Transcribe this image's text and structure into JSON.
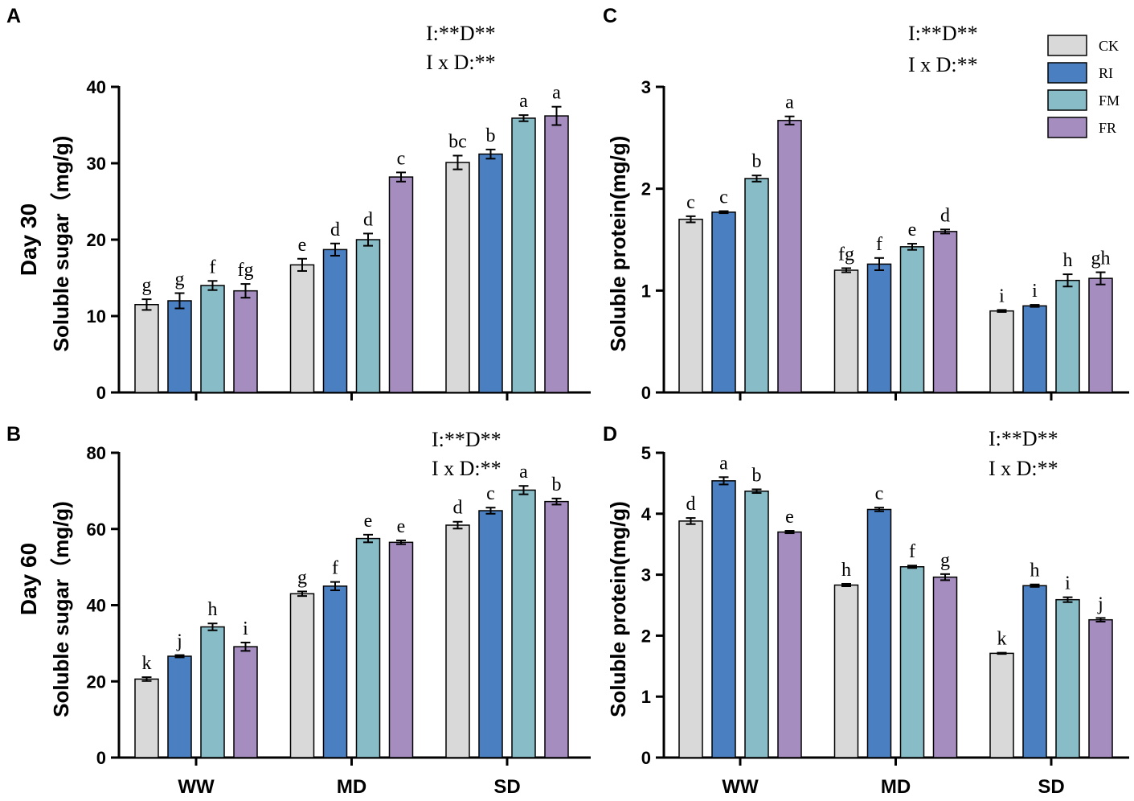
{
  "colors": {
    "CK": "#d9d9d9",
    "RI": "#4a7fc1",
    "FM": "#88bdc8",
    "FR": "#a58dc0",
    "axis": "#000000"
  },
  "legend": {
    "entries": [
      "CK",
      "RI",
      "FM",
      "FR"
    ],
    "placement": "top-right"
  },
  "row_labels": [
    "Day 30",
    "Day 60"
  ],
  "chart_data": [
    {
      "panel": "A",
      "type": "bar",
      "ylabel": "Soluble sugar（mg/g)",
      "ylim": [
        0,
        40
      ],
      "yticks": [
        0,
        10,
        20,
        30,
        40
      ],
      "categories": [
        "WW",
        "MD",
        "SD"
      ],
      "show_category_labels": false,
      "annotation": [
        "I:**D**",
        "I x D:**"
      ],
      "series": [
        {
          "name": "CK",
          "values": [
            11.5,
            16.7,
            30.1
          ],
          "errors": [
            0.7,
            0.8,
            0.9
          ],
          "letters": [
            "g",
            "e",
            "bc"
          ]
        },
        {
          "name": "RI",
          "values": [
            12.0,
            18.7,
            31.2
          ],
          "errors": [
            1.0,
            0.8,
            0.6
          ],
          "letters": [
            "g",
            "d",
            "b"
          ]
        },
        {
          "name": "FM",
          "values": [
            14.0,
            20.0,
            35.9
          ],
          "errors": [
            0.6,
            0.8,
            0.4
          ],
          "letters": [
            "f",
            "d",
            "a"
          ]
        },
        {
          "name": "FR",
          "values": [
            13.3,
            28.2,
            36.2
          ],
          "errors": [
            0.9,
            0.6,
            1.2
          ],
          "letters": [
            "fg",
            "c",
            "a"
          ]
        }
      ]
    },
    {
      "panel": "C",
      "type": "bar",
      "ylabel": "Soluble protein(mg/g)",
      "ylim": [
        0,
        3
      ],
      "yticks": [
        0,
        1,
        2,
        3
      ],
      "categories": [
        "WW",
        "MD",
        "SD"
      ],
      "show_category_labels": false,
      "annotation": [
        "I:**D**",
        "I x D:**"
      ],
      "series": [
        {
          "name": "CK",
          "values": [
            1.7,
            1.2,
            0.8
          ],
          "errors": [
            0.03,
            0.02,
            0.01
          ],
          "letters": [
            "c",
            "fg",
            "i"
          ]
        },
        {
          "name": "RI",
          "values": [
            1.77,
            1.26,
            0.85
          ],
          "errors": [
            0.01,
            0.06,
            0.01
          ],
          "letters": [
            "c",
            "f",
            "i"
          ]
        },
        {
          "name": "FM",
          "values": [
            2.1,
            1.43,
            1.1
          ],
          "errors": [
            0.03,
            0.03,
            0.06
          ],
          "letters": [
            "b",
            "e",
            "h"
          ]
        },
        {
          "name": "FR",
          "values": [
            2.67,
            1.58,
            1.12
          ],
          "errors": [
            0.04,
            0.02,
            0.06
          ],
          "letters": [
            "a",
            "d",
            "gh"
          ]
        }
      ]
    },
    {
      "panel": "B",
      "type": "bar",
      "ylabel": "Soluble sugar（mg/g)",
      "ylim": [
        0,
        80
      ],
      "yticks": [
        0,
        20,
        40,
        60,
        80
      ],
      "categories": [
        "WW",
        "MD",
        "SD"
      ],
      "show_category_labels": true,
      "annotation": [
        "I:**D**",
        "I x D:**"
      ],
      "series": [
        {
          "name": "CK",
          "values": [
            20.6,
            43.0,
            61.0
          ],
          "errors": [
            0.5,
            0.6,
            0.9
          ],
          "letters": [
            "k",
            "g",
            "d"
          ]
        },
        {
          "name": "RI",
          "values": [
            26.6,
            45.0,
            64.8
          ],
          "errors": [
            0.3,
            1.1,
            0.8
          ],
          "letters": [
            "j",
            "f",
            "c"
          ]
        },
        {
          "name": "FM",
          "values": [
            34.3,
            57.5,
            70.2
          ],
          "errors": [
            0.9,
            1.0,
            1.1
          ],
          "letters": [
            "h",
            "e",
            "a"
          ]
        },
        {
          "name": "FR",
          "values": [
            29.1,
            56.5,
            67.2
          ],
          "errors": [
            1.1,
            0.5,
            0.8
          ],
          "letters": [
            "i",
            "e",
            "b"
          ]
        }
      ]
    },
    {
      "panel": "D",
      "type": "bar",
      "ylabel": "Soluble protein(mg/g)",
      "ylim": [
        0,
        5
      ],
      "yticks": [
        0,
        1,
        2,
        3,
        4,
        5
      ],
      "categories": [
        "WW",
        "MD",
        "SD"
      ],
      "show_category_labels": true,
      "annotation": [
        "I:**D**",
        "I x D:**"
      ],
      "series": [
        {
          "name": "CK",
          "values": [
            3.88,
            2.83,
            1.71
          ],
          "errors": [
            0.05,
            0.02,
            0.01
          ],
          "letters": [
            "d",
            "h",
            "k"
          ]
        },
        {
          "name": "RI",
          "values": [
            4.54,
            4.07,
            2.82
          ],
          "errors": [
            0.06,
            0.03,
            0.02
          ],
          "letters": [
            "a",
            "c",
            "h"
          ]
        },
        {
          "name": "FM",
          "values": [
            4.37,
            3.13,
            2.59
          ],
          "errors": [
            0.03,
            0.02,
            0.04
          ],
          "letters": [
            "b",
            "f",
            "i"
          ]
        },
        {
          "name": "FR",
          "values": [
            3.7,
            2.96,
            2.26
          ],
          "errors": [
            0.02,
            0.05,
            0.03
          ],
          "letters": [
            "e",
            "g",
            "j"
          ]
        }
      ]
    }
  ]
}
